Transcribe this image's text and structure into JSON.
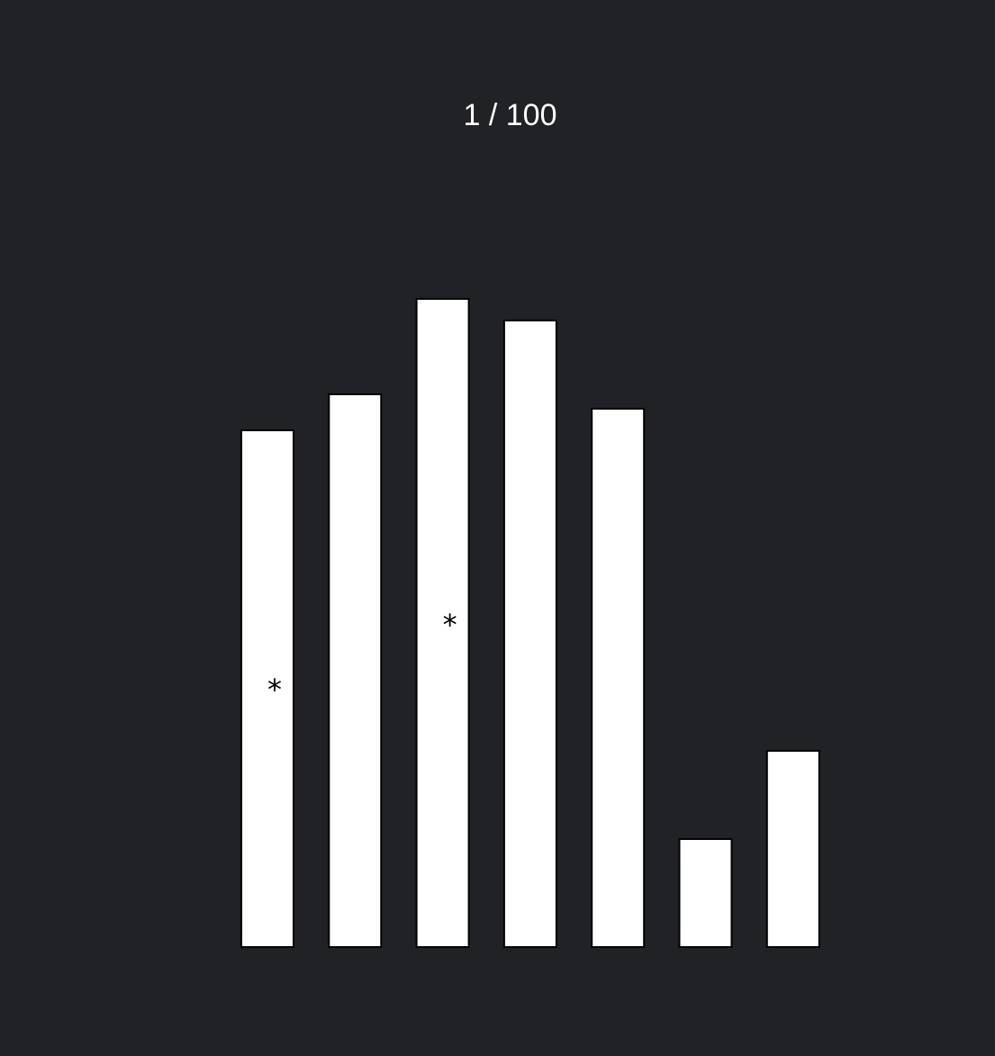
{
  "header": {
    "trial_counter": "1 / 100"
  },
  "colors": {
    "background": "#212226",
    "bar_fill": "#ffffff",
    "bar_stroke": "#000000",
    "text": "#ffffff"
  },
  "chart_data": {
    "type": "bar",
    "categories": [
      "",
      "",
      "",
      "",
      "",
      "",
      ""
    ],
    "values": [
      57.4,
      61.4,
      72,
      69.6,
      59.8,
      12,
      21.8
    ],
    "ylim": [
      0,
      72
    ],
    "grid": false,
    "axes_visible": false,
    "marked_bars": [
      0,
      2
    ],
    "marker_symbol": "*",
    "marker_values": [
      29.7,
      36.9
    ]
  }
}
